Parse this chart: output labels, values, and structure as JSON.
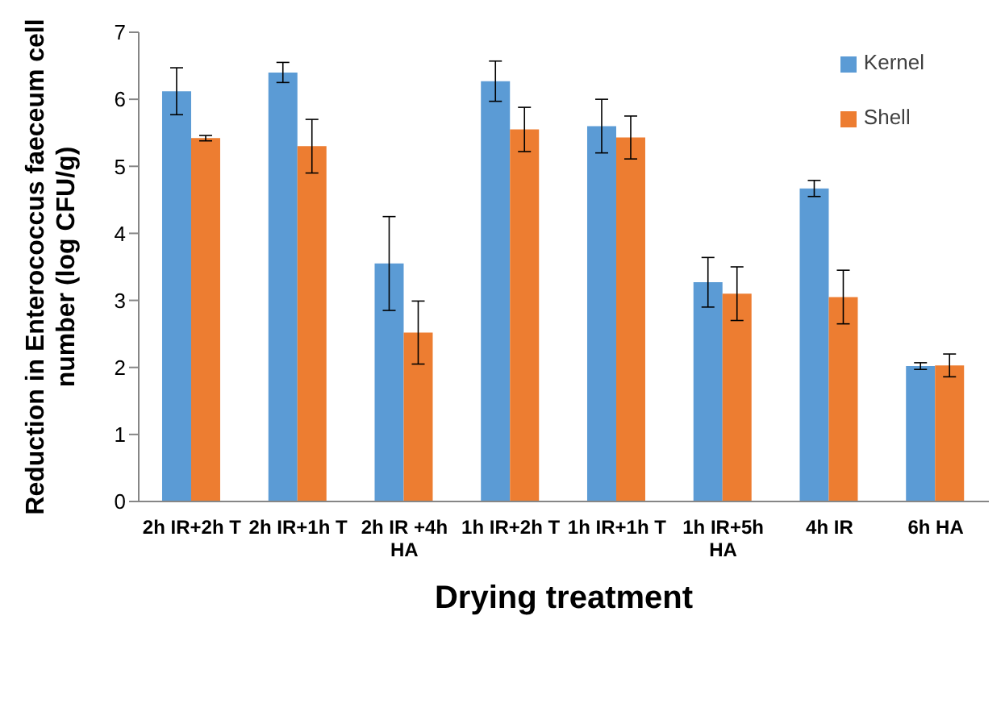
{
  "chart_data": {
    "type": "bar",
    "xlabel": "Drying treatment",
    "ylabel": "Reduction in Enterococcus faeceum cell number (log CFU/g)",
    "categories": [
      "2h IR+2h T",
      "2h IR+1h T",
      "2h IR +4h HA",
      "1h IR+2h T",
      "1h IR+1h T",
      "1h IR+5h HA",
      "4h IR",
      "6h HA"
    ],
    "series": [
      {
        "name": "Kernel",
        "color": "#5b9bd5",
        "values": [
          6.12,
          6.4,
          3.55,
          6.27,
          5.6,
          3.27,
          4.67,
          2.02
        ],
        "errors": [
          0.35,
          0.15,
          0.7,
          0.3,
          0.4,
          0.37,
          0.12,
          0.05
        ]
      },
      {
        "name": "Shell",
        "color": "#ed7d31",
        "values": [
          5.42,
          5.3,
          2.52,
          5.55,
          5.43,
          3.1,
          3.05,
          2.03
        ],
        "errors": [
          0.04,
          0.4,
          0.47,
          0.33,
          0.32,
          0.4,
          0.4,
          0.17
        ]
      }
    ],
    "ylim": [
      0,
      7
    ],
    "yticks": [
      0,
      1,
      2,
      3,
      4,
      5,
      6,
      7
    ],
    "grid": false,
    "legend": "top right"
  }
}
